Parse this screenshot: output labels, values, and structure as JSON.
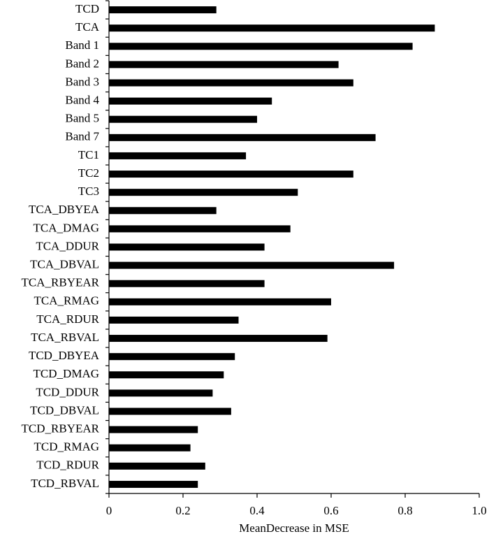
{
  "chart_data": {
    "type": "bar",
    "orientation": "horizontal",
    "x_label": "MeanDecrease in MSE",
    "categories": [
      "TCD",
      "TCA",
      "Band 1",
      "Band 2",
      "Band 3",
      "Band 4",
      "Band 5",
      "Band 7",
      "TC1",
      "TC2",
      "TC3",
      "TCA_DBYEA",
      "TCA_DMAG",
      "TCA_DDUR",
      "TCA_DBVAL",
      "TCA_RBYEAR",
      "TCA_RMAG",
      "TCA_RDUR",
      "TCA_RBVAL",
      "TCD_DBYEA",
      "TCD_DMAG",
      "TCD_DDUR",
      "TCD_DBVAL",
      "TCD_RBYEAR",
      "TCD_RMAG",
      "TCD_RDUR",
      "TCD_RBVAL"
    ],
    "values": [
      0.29,
      0.88,
      0.82,
      0.62,
      0.66,
      0.44,
      0.4,
      0.72,
      0.37,
      0.66,
      0.51,
      0.29,
      0.49,
      0.42,
      0.77,
      0.42,
      0.6,
      0.35,
      0.59,
      0.34,
      0.31,
      0.28,
      0.33,
      0.24,
      0.22,
      0.26,
      0.24
    ],
    "color": "#000000",
    "xlim": [
      0,
      1.0
    ],
    "xticks": [
      0,
      0.2,
      0.4,
      0.6,
      0.8,
      {
        "value": 1.0,
        "label": "1.0"
      }
    ]
  }
}
